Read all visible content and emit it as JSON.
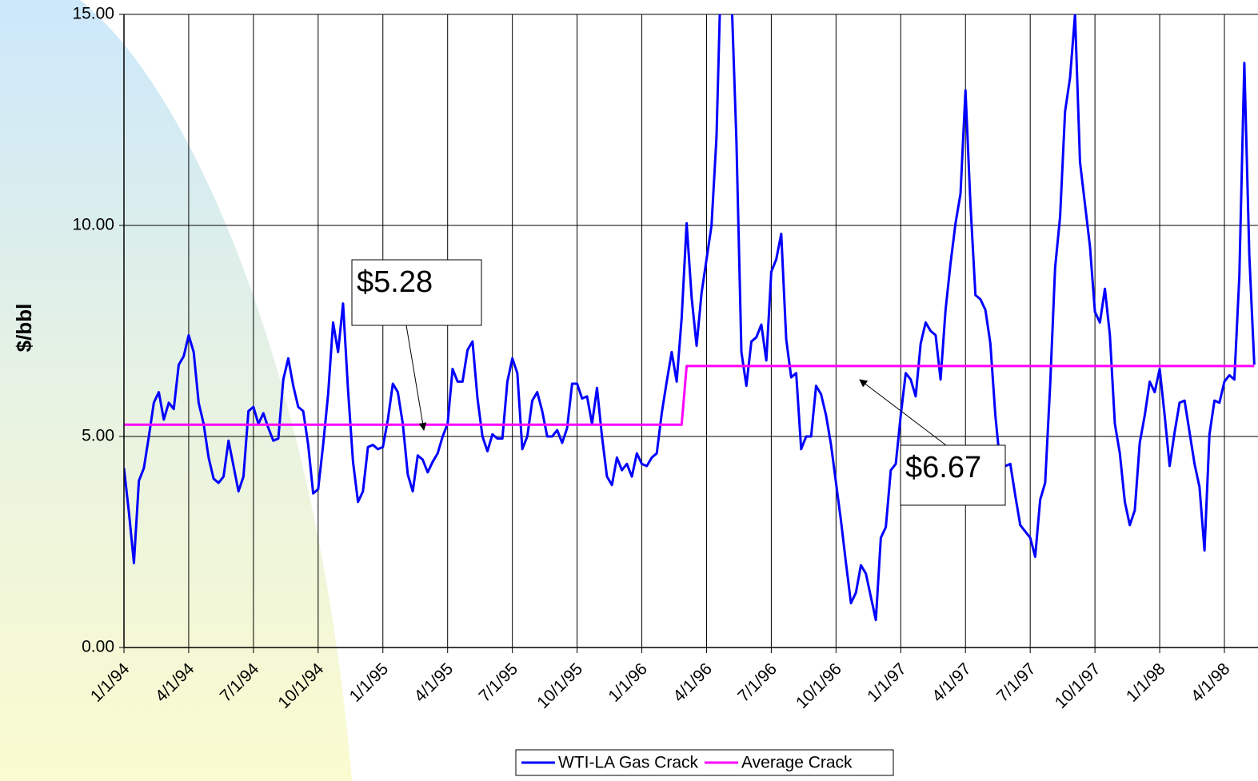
{
  "chart_data": {
    "type": "line",
    "y_label": "$/bbl",
    "ylim": [
      0,
      15
    ],
    "yticks": [
      {
        "value": 0,
        "label": "0.00"
      },
      {
        "value": 5,
        "label": "5.00"
      },
      {
        "value": 10,
        "label": "10.00"
      },
      {
        "value": 15,
        "label": "15.00"
      }
    ],
    "grid": true,
    "legend": "bottom",
    "annotations": [
      {
        "text": "$5.28"
      },
      {
        "text": "$6.67"
      }
    ],
    "categories": [
      "1/1/94",
      null,
      null,
      null,
      null,
      null,
      null,
      null,
      null,
      null,
      null,
      null,
      null,
      "4/1/94",
      null,
      null,
      null,
      null,
      null,
      null,
      null,
      null,
      null,
      null,
      null,
      null,
      "7/1/94",
      null,
      null,
      null,
      null,
      null,
      null,
      null,
      null,
      null,
      null,
      null,
      null,
      "10/1/94",
      null,
      null,
      null,
      null,
      null,
      null,
      null,
      null,
      null,
      null,
      null,
      null,
      "1/1/95",
      null,
      null,
      null,
      null,
      null,
      null,
      null,
      null,
      null,
      null,
      null,
      null,
      "4/1/95",
      null,
      null,
      null,
      null,
      null,
      null,
      null,
      null,
      null,
      null,
      null,
      null,
      "7/1/95",
      null,
      null,
      null,
      null,
      null,
      null,
      null,
      null,
      null,
      null,
      null,
      null,
      "10/1/95",
      null,
      null,
      null,
      null,
      null,
      null,
      null,
      null,
      null,
      null,
      null,
      null,
      "1/1/96",
      null,
      null,
      null,
      null,
      null,
      null,
      null,
      null,
      null,
      null,
      null,
      null,
      "4/1/96",
      null,
      null,
      null,
      null,
      null,
      null,
      null,
      null,
      null,
      null,
      null,
      null,
      "7/1/96",
      null,
      null,
      null,
      null,
      null,
      null,
      null,
      null,
      null,
      null,
      null,
      null,
      "10/1/96",
      null,
      null,
      null,
      null,
      null,
      null,
      null,
      null,
      null,
      null,
      null,
      null,
      "1/1/97",
      null,
      null,
      null,
      null,
      null,
      null,
      null,
      null,
      null,
      null,
      null,
      null,
      "4/1/97",
      null,
      null,
      null,
      null,
      null,
      null,
      null,
      null,
      null,
      null,
      null,
      null,
      "7/1/97",
      null,
      null,
      null,
      null,
      null,
      null,
      null,
      null,
      null,
      null,
      null,
      null,
      "10/1/97",
      null,
      null,
      null,
      null,
      null,
      null,
      null,
      null,
      null,
      null,
      null,
      null,
      "1/1/98",
      null,
      null,
      null,
      null,
      null,
      null,
      null,
      null,
      null,
      null,
      null,
      null,
      "4/1/98",
      null,
      null,
      null,
      null,
      null,
      null
    ],
    "series": [
      {
        "name": "WTI-LA Gas Crack",
        "color": "#0000ff",
        "values": [
          4.25,
          3.2,
          2.0,
          3.95,
          4.25,
          5.0,
          5.8,
          6.05,
          5.4,
          5.8,
          5.65,
          6.7,
          6.9,
          7.4,
          7.0,
          5.8,
          5.3,
          4.5,
          4.0,
          3.9,
          4.05,
          4.9,
          4.3,
          3.7,
          4.05,
          5.6,
          5.7,
          5.3,
          5.55,
          5.2,
          4.9,
          4.95,
          6.35,
          6.85,
          6.2,
          5.7,
          5.6,
          4.8,
          3.65,
          3.75,
          4.8,
          6.0,
          7.7,
          7.0,
          8.15,
          6.1,
          4.4,
          3.45,
          3.7,
          4.75,
          4.8,
          4.7,
          4.75,
          5.4,
          6.25,
          6.05,
          5.3,
          4.1,
          3.7,
          4.55,
          4.45,
          4.15,
          4.4,
          4.6,
          5.0,
          5.3,
          6.6,
          6.3,
          6.3,
          7.05,
          7.25,
          5.9,
          5.0,
          4.65,
          5.05,
          4.95,
          4.95,
          6.3,
          6.85,
          6.5,
          4.7,
          5.0,
          5.85,
          6.05,
          5.6,
          5.0,
          5.0,
          5.15,
          4.85,
          5.2,
          6.25,
          6.25,
          5.9,
          5.95,
          5.3,
          6.15,
          5.0,
          4.05,
          3.85,
          4.5,
          4.2,
          4.35,
          4.05,
          4.6,
          4.35,
          4.3,
          4.5,
          4.6,
          5.55,
          6.3,
          7.0,
          6.3,
          7.8,
          10.05,
          8.3,
          7.15,
          8.4,
          9.2,
          10.0,
          12.1,
          16.5,
          16.5,
          15.5,
          12.0,
          7.0,
          6.2,
          7.25,
          7.35,
          7.65,
          6.8,
          8.9,
          9.2,
          9.8,
          7.3,
          6.4,
          6.5,
          4.7,
          5.0,
          5.0,
          6.2,
          6.0,
          5.5,
          4.8,
          3.9,
          3.0,
          2.0,
          1.05,
          1.3,
          1.95,
          1.75,
          1.2,
          0.65,
          2.6,
          2.85,
          4.2,
          4.35,
          5.5,
          6.5,
          6.35,
          5.95,
          7.2,
          7.7,
          7.5,
          7.4,
          6.35,
          8.0,
          9.1,
          10.05,
          10.75,
          13.2,
          10.5,
          8.35,
          8.25,
          8.0,
          7.2,
          5.5,
          4.3,
          4.3,
          4.35,
          3.6,
          2.9,
          2.75,
          2.6,
          2.15,
          3.5,
          3.9,
          6.2,
          9.0,
          10.2,
          12.7,
          13.5,
          15.0,
          11.5,
          10.5,
          9.5,
          7.95,
          7.7,
          8.5,
          7.4,
          5.3,
          4.6,
          3.45,
          2.9,
          3.25,
          4.85,
          5.5,
          6.3,
          6.05,
          6.6,
          5.5,
          4.3,
          5.1,
          5.8,
          5.85,
          5.1,
          4.35,
          3.8,
          2.3,
          5.05,
          5.85,
          5.8,
          6.3,
          6.45,
          6.35,
          8.8,
          13.85,
          9.3,
          6.7
        ]
      },
      {
        "name": "Average Crack",
        "color": "#ff00ff",
        "values": [
          5.28,
          5.28,
          5.28,
          5.28,
          5.28,
          5.28,
          5.28,
          5.28,
          5.28,
          5.28,
          5.28,
          5.28,
          5.28,
          5.28,
          5.28,
          5.28,
          5.28,
          5.28,
          5.28,
          5.28,
          5.28,
          5.28,
          5.28,
          5.28,
          5.28,
          5.28,
          5.28,
          5.28,
          5.28,
          5.28,
          5.28,
          5.28,
          5.28,
          5.28,
          5.28,
          5.28,
          5.28,
          5.28,
          5.28,
          5.28,
          5.28,
          5.28,
          5.28,
          5.28,
          5.28,
          5.28,
          5.28,
          5.28,
          5.28,
          5.28,
          5.28,
          5.28,
          5.28,
          5.28,
          5.28,
          5.28,
          5.28,
          5.28,
          5.28,
          5.28,
          5.28,
          5.28,
          5.28,
          5.28,
          5.28,
          5.28,
          5.28,
          5.28,
          5.28,
          5.28,
          5.28,
          5.28,
          5.28,
          5.28,
          5.28,
          5.28,
          5.28,
          5.28,
          5.28,
          5.28,
          5.28,
          5.28,
          5.28,
          5.28,
          5.28,
          5.28,
          5.28,
          5.28,
          5.28,
          5.28,
          5.28,
          5.28,
          5.28,
          5.28,
          5.28,
          5.28,
          5.28,
          5.28,
          5.28,
          5.28,
          5.28,
          5.28,
          5.28,
          5.28,
          5.28,
          5.28,
          5.28,
          5.28,
          5.28,
          5.28,
          5.28,
          5.28,
          5.28,
          6.67,
          6.67,
          6.67,
          6.67,
          6.67,
          6.67,
          6.67,
          6.67,
          6.67,
          6.67,
          6.67,
          6.67,
          6.67,
          6.67,
          6.67,
          6.67,
          6.67,
          6.67,
          6.67,
          6.67,
          6.67,
          6.67,
          6.67,
          6.67,
          6.67,
          6.67,
          6.67,
          6.67,
          6.67,
          6.67,
          6.67,
          6.67,
          6.67,
          6.67,
          6.67,
          6.67,
          6.67,
          6.67,
          6.67,
          6.67,
          6.67,
          6.67,
          6.67,
          6.67,
          6.67,
          6.67,
          6.67,
          6.67,
          6.67,
          6.67,
          6.67,
          6.67,
          6.67,
          6.67,
          6.67,
          6.67,
          6.67,
          6.67,
          6.67,
          6.67,
          6.67,
          6.67,
          6.67,
          6.67,
          6.67,
          6.67,
          6.67,
          6.67,
          6.67,
          6.67,
          6.67,
          6.67,
          6.67,
          6.67,
          6.67,
          6.67,
          6.67,
          6.67,
          6.67,
          6.67,
          6.67,
          6.67,
          6.67,
          6.67,
          6.67,
          6.67,
          6.67,
          6.67,
          6.67,
          6.67,
          6.67,
          6.67,
          6.67,
          6.67,
          6.67,
          6.67,
          6.67,
          6.67,
          6.67,
          6.67,
          6.67,
          6.67,
          6.67,
          6.67,
          6.67,
          6.67,
          6.67,
          6.67,
          6.67,
          6.67,
          6.67,
          6.67,
          6.67,
          6.67,
          6.67
        ]
      }
    ]
  }
}
